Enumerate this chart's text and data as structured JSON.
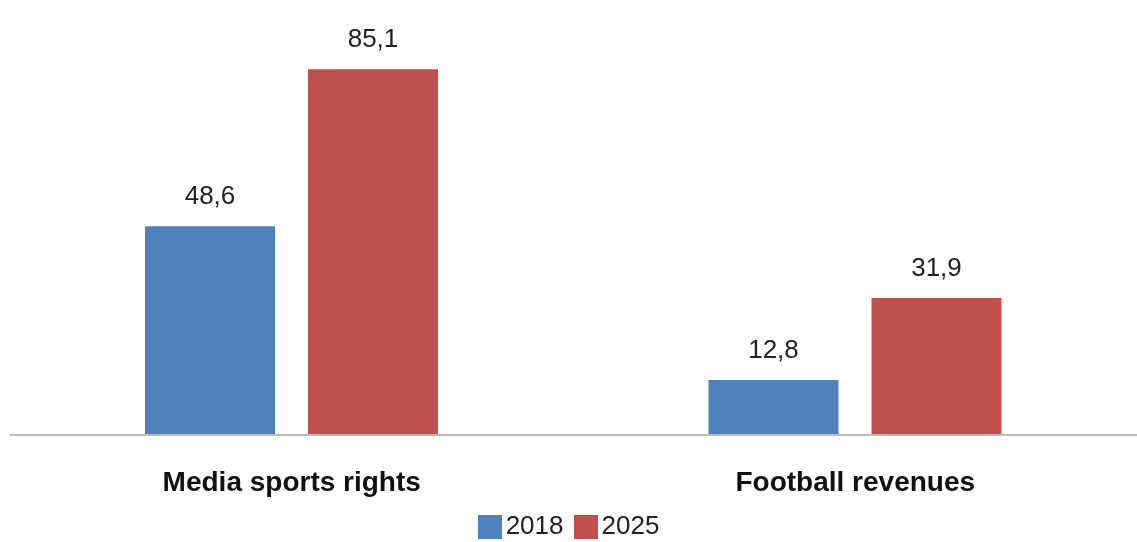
{
  "chart_data": {
    "type": "bar",
    "categories": [
      "Media sports rights",
      "Football revenues"
    ],
    "series": [
      {
        "name": "2018",
        "color": "#4f81bd",
        "values": [
          48.6,
          12.8
        ],
        "value_labels": [
          "48,6",
          "12,8"
        ]
      },
      {
        "name": "2025",
        "color": "#c0504d",
        "values": [
          85.1,
          31.9
        ],
        "value_labels": [
          "85,1",
          "31,9"
        ]
      }
    ],
    "legend": "bottom",
    "grid": false
  }
}
